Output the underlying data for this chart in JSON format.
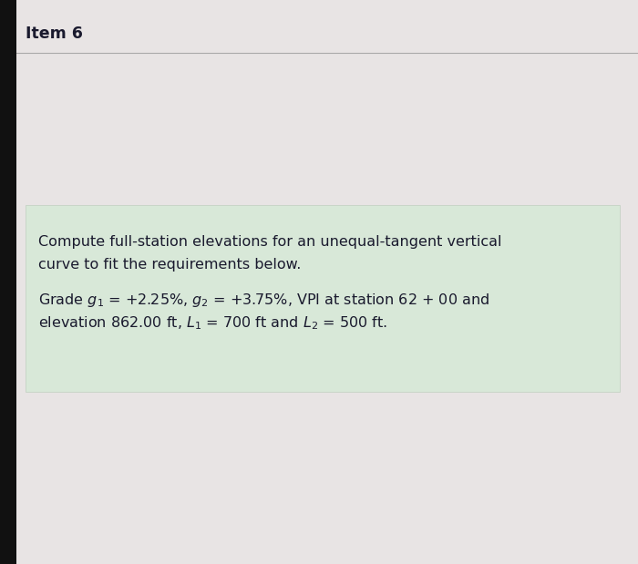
{
  "title": "Item 6",
  "bg_color": "#e8e4e4",
  "panel_color": "#d8e8d8",
  "title_color": "#1a1a2e",
  "text_color": "#1a1a2e",
  "title_fontsize": 12.5,
  "body_fontsize": 11.5,
  "line1": "Compute full-station elevations for an unequal-tangent vertical",
  "line2": "curve to fit the requirements below.",
  "line3": "Grade $g_1$ = +2.25%, $g_2$ = +3.75%, VPI at station 62 + 00 and",
  "line4": "elevation 862.00 ft, $L_1$ = 700 ft and $L_2$ = 500 ft.",
  "left_bar_color": "#111111",
  "separator_color": "#aaaaaa",
  "panel_border_color": "#c0cfc0"
}
